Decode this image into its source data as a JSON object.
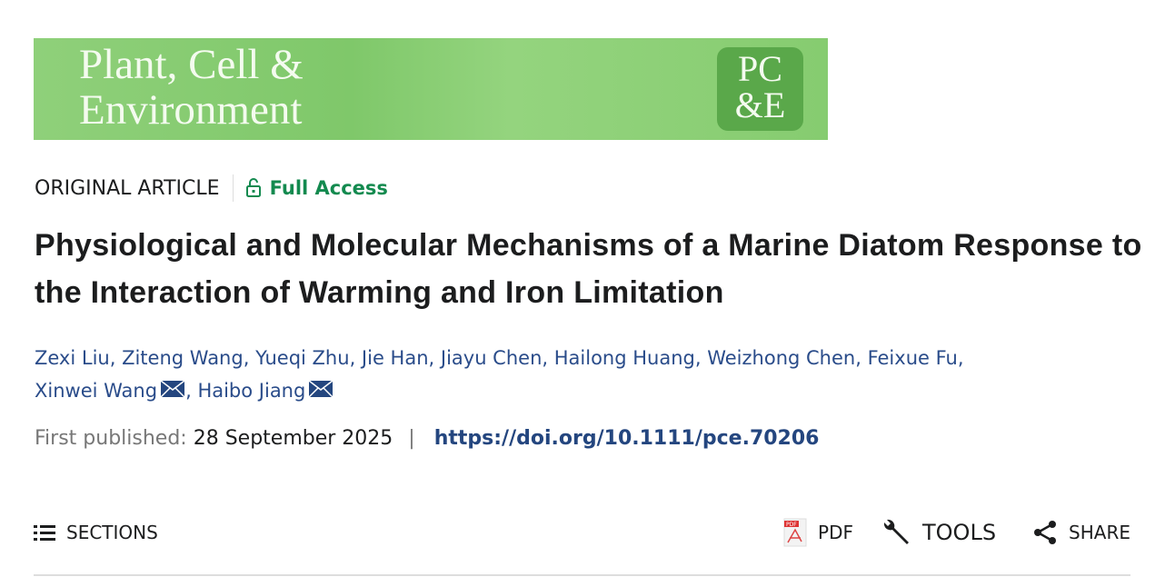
{
  "journal": {
    "title_line1": "Plant, Cell &",
    "title_line2": "Environment",
    "logo_text": "PC&E"
  },
  "article_type": "ORIGINAL ARTICLE",
  "access": {
    "label": "Full Access",
    "color": "#138a4f"
  },
  "title": "Physiological and Molecular Mechanisms of a Marine Diatom Response to the Interaction of Warming and Iron Limitation",
  "authors": [
    {
      "name": "Zexi Liu"
    },
    {
      "name": "Ziteng Wang"
    },
    {
      "name": "Yueqi Zhu"
    },
    {
      "name": "Jie Han"
    },
    {
      "name": "Jiayu Chen"
    },
    {
      "name": "Hailong Huang"
    },
    {
      "name": "Weizhong Chen"
    },
    {
      "name": "Feixue Fu"
    },
    {
      "name": "Xinwei Wang",
      "corresponding": true
    },
    {
      "name": "Haibo Jiang",
      "corresponding": true
    }
  ],
  "published": {
    "label": "First published:",
    "date": "28 September 2025",
    "separator": "|",
    "doi": "https://doi.org/10.1111/pce.70206"
  },
  "toolbar": {
    "sections": "SECTIONS",
    "pdf": "PDF",
    "tools": "TOOLS",
    "share": "SHARE"
  }
}
